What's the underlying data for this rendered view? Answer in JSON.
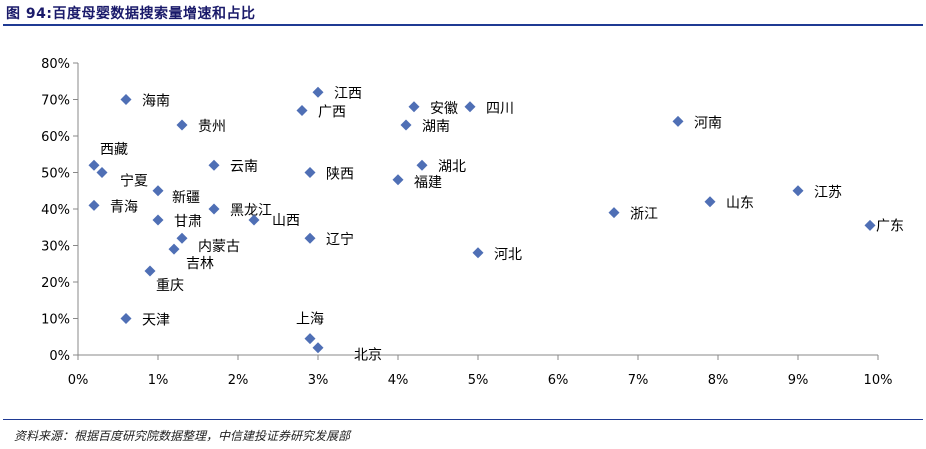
{
  "figure_title": "图 94:百度母婴数据搜索量增速和占比",
  "source_note": "资料来源：根据百度研究院数据整理，中信建投证券研究发展部",
  "chart_data": {
    "type": "scatter",
    "title": "",
    "xlabel": "",
    "ylabel": "",
    "xlim": [
      0,
      0.1
    ],
    "ylim": [
      0,
      0.8
    ],
    "x_ticks": [
      "0%",
      "1%",
      "2%",
      "3%",
      "4%",
      "5%",
      "6%",
      "7%",
      "8%",
      "9%",
      "10%"
    ],
    "y_ticks": [
      "0%",
      "10%",
      "20%",
      "30%",
      "40%",
      "50%",
      "60%",
      "70%",
      "80%"
    ],
    "grid": false,
    "marker_color": "#4f6fb5",
    "points": [
      {
        "name": "海南",
        "x": 0.006,
        "y": 0.7
      },
      {
        "name": "贵州",
        "x": 0.013,
        "y": 0.63
      },
      {
        "name": "西藏",
        "x": 0.002,
        "y": 0.52
      },
      {
        "name": "宁夏",
        "x": 0.003,
        "y": 0.5
      },
      {
        "name": "新疆",
        "x": 0.01,
        "y": 0.45
      },
      {
        "name": "青海",
        "x": 0.002,
        "y": 0.41
      },
      {
        "name": "甘肃",
        "x": 0.01,
        "y": 0.37
      },
      {
        "name": "内蒙古",
        "x": 0.013,
        "y": 0.32
      },
      {
        "name": "吉林",
        "x": 0.012,
        "y": 0.29
      },
      {
        "name": "重庆",
        "x": 0.009,
        "y": 0.23
      },
      {
        "name": "天津",
        "x": 0.006,
        "y": 0.1
      },
      {
        "name": "云南",
        "x": 0.017,
        "y": 0.52
      },
      {
        "name": "黑龙江",
        "x": 0.017,
        "y": 0.4
      },
      {
        "name": "山西",
        "x": 0.022,
        "y": 0.37
      },
      {
        "name": "江西",
        "x": 0.03,
        "y": 0.72
      },
      {
        "name": "广西",
        "x": 0.028,
        "y": 0.67
      },
      {
        "name": "陕西",
        "x": 0.029,
        "y": 0.5
      },
      {
        "name": "辽宁",
        "x": 0.029,
        "y": 0.32
      },
      {
        "name": "上海",
        "x": 0.029,
        "y": 0.045
      },
      {
        "name": "北京",
        "x": 0.03,
        "y": 0.02
      },
      {
        "name": "安徽",
        "x": 0.042,
        "y": 0.68
      },
      {
        "name": "四川",
        "x": 0.049,
        "y": 0.68
      },
      {
        "name": "湖南",
        "x": 0.041,
        "y": 0.63
      },
      {
        "name": "湖北",
        "x": 0.043,
        "y": 0.52
      },
      {
        "name": "福建",
        "x": 0.04,
        "y": 0.48
      },
      {
        "name": "河北",
        "x": 0.05,
        "y": 0.28
      },
      {
        "name": "河南",
        "x": 0.075,
        "y": 0.64
      },
      {
        "name": "浙江",
        "x": 0.067,
        "y": 0.39
      },
      {
        "name": "山东",
        "x": 0.079,
        "y": 0.42
      },
      {
        "name": "江苏",
        "x": 0.09,
        "y": 0.45
      },
      {
        "name": "广东",
        "x": 0.099,
        "y": 0.355
      }
    ]
  }
}
